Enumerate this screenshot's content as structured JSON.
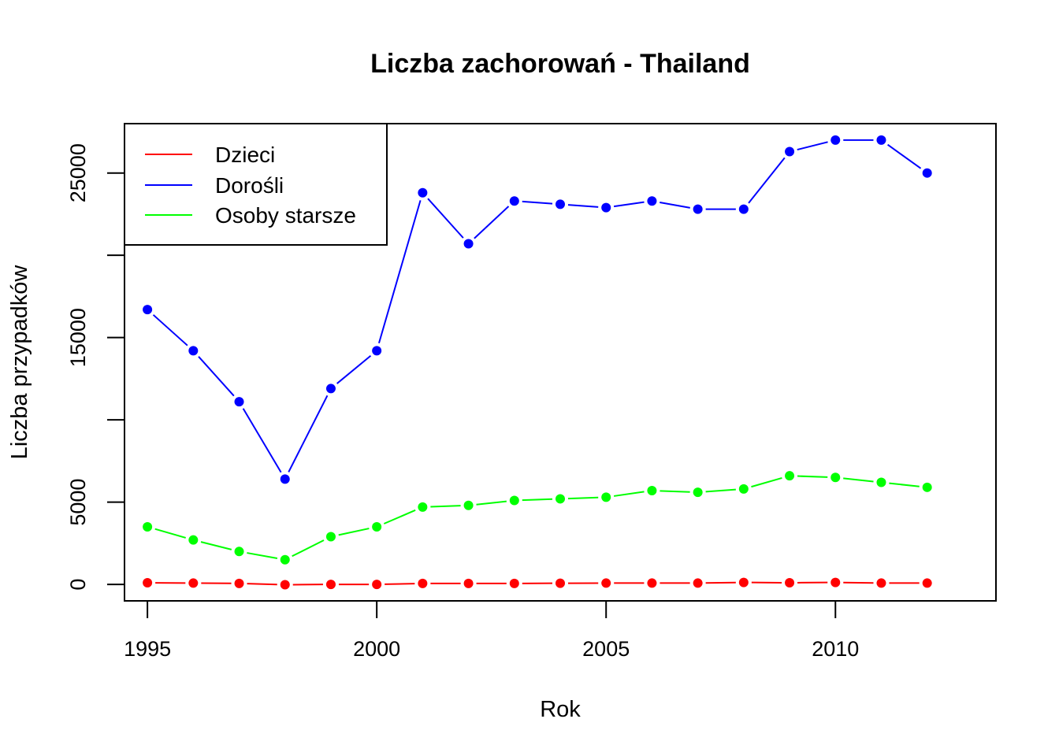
{
  "chart_data": {
    "type": "line",
    "title": "Liczba zachorowań -  Thailand",
    "xlabel": "Rok",
    "ylabel": "Liczba przypadków",
    "xlim": [
      1994.5,
      2013.5
    ],
    "ylim": [
      -1000,
      28000
    ],
    "x_ticks": [
      1995,
      2000,
      2005,
      2010
    ],
    "y_ticks": [
      0,
      5000,
      10000,
      15000,
      20000,
      25000
    ],
    "y_tick_labels": [
      "0",
      "5000",
      "",
      "15000",
      "",
      "25000"
    ],
    "x": [
      1995,
      1996,
      1997,
      1998,
      1999,
      2000,
      2001,
      2002,
      2003,
      2004,
      2005,
      2006,
      2007,
      2008,
      2009,
      2010,
      2011,
      2012
    ],
    "legend_position": "top-left",
    "series": [
      {
        "name": "Dzieci",
        "color": "#ff0000",
        "values": [
          100,
          80,
          60,
          -20,
          0,
          0,
          60,
          60,
          60,
          70,
          80,
          80,
          80,
          120,
          100,
          120,
          80,
          80
        ]
      },
      {
        "name": "Dorośli",
        "color": "#0000ff",
        "values": [
          16700,
          14200,
          11100,
          6400,
          11900,
          14200,
          23800,
          20700,
          23300,
          23100,
          22900,
          23300,
          22800,
          22800,
          26300,
          27000,
          27000,
          25000
        ]
      },
      {
        "name": "Osoby starsze",
        "color": "#00ff00",
        "values": [
          3500,
          2700,
          2000,
          1500,
          2900,
          3500,
          4700,
          4800,
          5100,
          5200,
          5300,
          5700,
          5600,
          5800,
          6600,
          6500,
          6200,
          5900
        ]
      }
    ]
  }
}
